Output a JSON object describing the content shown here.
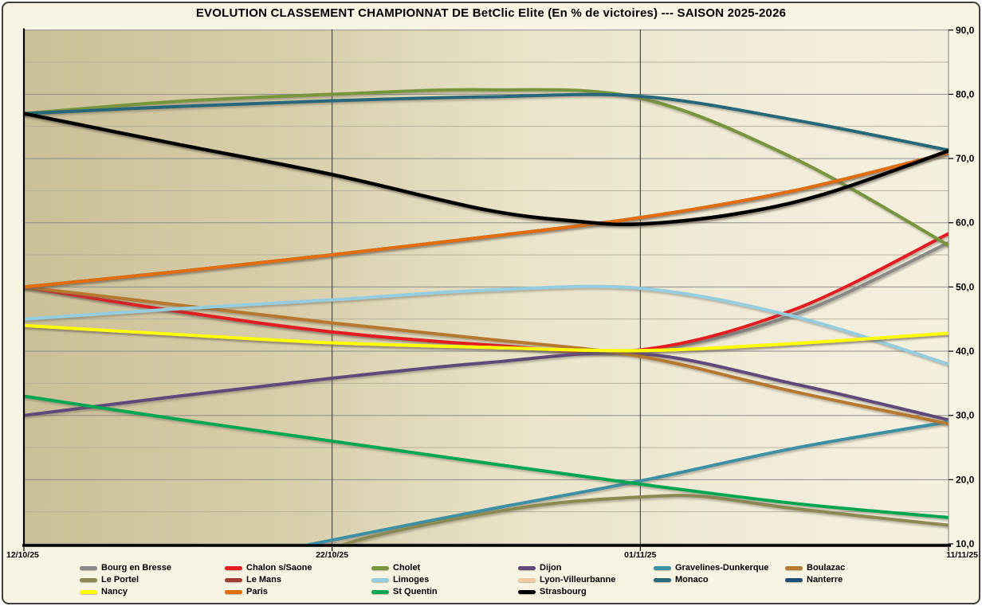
{
  "chart_data": {
    "type": "line",
    "title": "EVOLUTION  CLASSEMENT CHAMPIONNAT DE BetClic Elite (En % de victoires) --- SAISON 2025-2026",
    "x_axis": {
      "tick_labels": [
        "12/10/25",
        "22/10/25",
        "01/11/25",
        "11/11/25"
      ],
      "label_days": [
        0,
        10,
        20,
        30
      ],
      "gridline_days": [
        10,
        20
      ]
    },
    "y_axis": {
      "min": 10,
      "max": 90,
      "major_step": 10,
      "minor_step": 5,
      "tick_values": [
        90,
        80,
        70,
        60,
        50,
        40,
        30,
        20,
        10
      ],
      "tick_labels": [
        "90,0",
        "80,0",
        "70,0",
        "60,0",
        "50,0",
        "40,0",
        "30,0",
        "20,0",
        "10,0"
      ]
    },
    "series": [
      {
        "name": "Bourg en Bresse",
        "color": "#8a8a8a",
        "width": 4,
        "points": [
          [
            0,
            50
          ],
          [
            5,
            46.2
          ],
          [
            10,
            43
          ],
          [
            15,
            41
          ],
          [
            20,
            40
          ],
          [
            25,
            45.7
          ],
          [
            30,
            56.9
          ]
        ]
      },
      {
        "name": "Chalon s/Saone",
        "color": "#e31b23",
        "width": 4,
        "points": [
          [
            0,
            50
          ],
          [
            5,
            46.2
          ],
          [
            10,
            43
          ],
          [
            15,
            41
          ],
          [
            20,
            40.2
          ],
          [
            25,
            46.5
          ],
          [
            30,
            58.3
          ]
        ]
      },
      {
        "name": "Cholet",
        "color": "#78953e",
        "width": 4,
        "points": [
          [
            0,
            77
          ],
          [
            5,
            78.9
          ],
          [
            10,
            80
          ],
          [
            15,
            80.7
          ],
          [
            20,
            79.4
          ],
          [
            25,
            70
          ],
          [
            30,
            56.5
          ]
        ]
      },
      {
        "name": "Dijon",
        "color": "#5f497a",
        "width": 4,
        "points": [
          [
            0,
            30
          ],
          [
            5,
            33
          ],
          [
            10,
            35.8
          ],
          [
            15,
            38.2
          ],
          [
            20,
            39.6
          ],
          [
            25,
            34.9
          ],
          [
            30,
            29.3
          ]
        ]
      },
      {
        "name": "Gravelines-Dunkerque",
        "color": "#3d8fa4",
        "width": 4,
        "points": [
          [
            7.5,
            8.2
          ],
          [
            10,
            10.6
          ],
          [
            15,
            15.3
          ],
          [
            20,
            19.8
          ],
          [
            25,
            24.9
          ],
          [
            30,
            29
          ]
        ]
      },
      {
        "name": "Boulazac",
        "color": "#b5782f",
        "width": 4,
        "points": [
          [
            0,
            50
          ],
          [
            5,
            47.2
          ],
          [
            10,
            44.4
          ],
          [
            15,
            41.9
          ],
          [
            20,
            39.2
          ],
          [
            25,
            33.7
          ],
          [
            30,
            28.7
          ]
        ]
      },
      {
        "name": "Le Portel",
        "color": "#8d8952",
        "width": 4,
        "points": [
          [
            8.5,
            7
          ],
          [
            11,
            10.8
          ],
          [
            14,
            13.9
          ],
          [
            17,
            16.2
          ],
          [
            20,
            17.3
          ],
          [
            22,
            17.4
          ],
          [
            25,
            15.5
          ],
          [
            30,
            12.9
          ]
        ]
      },
      {
        "name": "Le Mans",
        "color": "#a03c38",
        "width": 4,
        "points": [
          [
            0,
            77
          ],
          [
            5,
            72.2
          ],
          [
            10,
            67.5
          ],
          [
            15,
            62
          ],
          [
            18,
            60.2
          ],
          [
            20,
            59.8
          ],
          [
            23,
            61.3
          ],
          [
            26,
            64.5
          ],
          [
            30,
            71.2
          ]
        ]
      },
      {
        "name": "Limoges",
        "color": "#95cde0",
        "width": 4,
        "points": [
          [
            0,
            45
          ],
          [
            5,
            46.6
          ],
          [
            10,
            48
          ],
          [
            15,
            49.5
          ],
          [
            20,
            49.8
          ],
          [
            25,
            45.4
          ],
          [
            30,
            38
          ]
        ]
      },
      {
        "name": "Lyon-Villeurbanne",
        "color": "#f4c9a2",
        "width": 4,
        "points": [
          [
            0,
            44
          ],
          [
            5,
            42.6
          ],
          [
            10,
            41.3
          ],
          [
            15,
            40.6
          ],
          [
            20,
            40.1
          ],
          [
            25,
            41.2
          ],
          [
            30,
            42.8
          ]
        ]
      },
      {
        "name": "Monaco",
        "color": "#276879",
        "width": 4,
        "points": [
          [
            0,
            77
          ],
          [
            5,
            78.1
          ],
          [
            10,
            79
          ],
          [
            15,
            79.6
          ],
          [
            20,
            79.7
          ],
          [
            25,
            76
          ],
          [
            30,
            71.3
          ]
        ]
      },
      {
        "name": "Nanterre",
        "color": "#1f4e79",
        "width": 4,
        "points": [
          [
            0,
            50
          ],
          [
            5,
            52.4
          ],
          [
            10,
            55
          ],
          [
            15,
            57.8
          ],
          [
            20,
            60.8
          ],
          [
            25,
            65
          ],
          [
            30,
            70.9
          ]
        ]
      },
      {
        "name": "Nancy",
        "color": "#ffff00",
        "width": 4,
        "points": [
          [
            0,
            44
          ],
          [
            5,
            42.6
          ],
          [
            10,
            41.3
          ],
          [
            15,
            40.6
          ],
          [
            20,
            40.1
          ],
          [
            25,
            41.2
          ],
          [
            30,
            42.8
          ]
        ]
      },
      {
        "name": "Paris",
        "color": "#e36c09",
        "width": 4,
        "points": [
          [
            0,
            50
          ],
          [
            5,
            52.4
          ],
          [
            10,
            55
          ],
          [
            15,
            57.8
          ],
          [
            20,
            60.8
          ],
          [
            25,
            65
          ],
          [
            30,
            70.9
          ]
        ]
      },
      {
        "name": "St Quentin",
        "color": "#00a651",
        "width": 4,
        "points": [
          [
            0,
            33
          ],
          [
            5,
            29.4
          ],
          [
            10,
            26
          ],
          [
            15,
            22.6
          ],
          [
            20,
            19.3
          ],
          [
            25,
            16.3
          ],
          [
            30,
            14.1
          ]
        ]
      },
      {
        "name": "Strasbourg",
        "color": "#000000",
        "width": 4.5,
        "points": [
          [
            0,
            77
          ],
          [
            5,
            72.2
          ],
          [
            10,
            67.5
          ],
          [
            15,
            62
          ],
          [
            18,
            60.2
          ],
          [
            20,
            59.8
          ],
          [
            23,
            61.3
          ],
          [
            26,
            64.5
          ],
          [
            30,
            71.2
          ]
        ]
      }
    ],
    "legend": {
      "labels": [
        "Bourg en Bresse",
        "Chalon s/Saone",
        "Cholet",
        "Dijon",
        "Gravelines-Dunkerque",
        "Boulazac",
        "Le Portel",
        "Le Mans",
        "Limoges",
        "Lyon-Villeurbanne",
        "Monaco",
        "Nanterre",
        "Nancy",
        "Paris",
        "St Quentin",
        "Strasbourg"
      ]
    },
    "colors": {
      "plot_bg_left": "#cbbf97",
      "plot_bg_right": "#f4f0de",
      "outer_bg": "#f8f4e3",
      "major_gridline": "#8c8c8c",
      "minor_gridline": "#b0ab96",
      "vertical_gridline": "#2f2f2f",
      "axis": "#000000"
    }
  }
}
